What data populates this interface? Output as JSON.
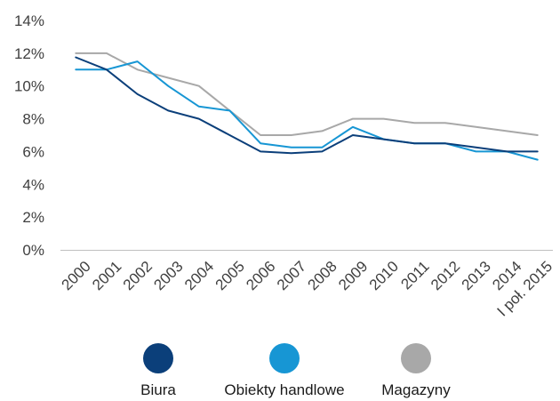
{
  "chart_data": {
    "type": "line",
    "title": "",
    "xlabel": "",
    "ylabel": "",
    "categories": [
      "2000",
      "2001",
      "2002",
      "2003",
      "2004",
      "2005",
      "2006",
      "2007",
      "2008",
      "2009",
      "2010",
      "2011",
      "2012",
      "2013",
      "2014",
      "I poł. 2015"
    ],
    "yticks": [
      "0%",
      "2%",
      "4%",
      "6%",
      "8%",
      "10%",
      "12%",
      "14%"
    ],
    "ylim": [
      0,
      14
    ],
    "grid": false,
    "legend_position": "bottom",
    "series": [
      {
        "name": "Biura",
        "color": "#0b3f7a",
        "values": [
          11.75,
          11.0,
          9.5,
          8.5,
          8.0,
          7.0,
          6.0,
          5.9,
          6.0,
          7.0,
          6.75,
          6.5,
          6.5,
          6.25,
          6.0,
          6.0
        ]
      },
      {
        "name": "Obiekty handlowe",
        "color": "#1796d4",
        "values": [
          11.0,
          11.0,
          11.5,
          10.0,
          8.75,
          8.5,
          6.5,
          6.25,
          6.25,
          7.5,
          6.75,
          6.5,
          6.5,
          6.0,
          6.0,
          5.5
        ]
      },
      {
        "name": "Magazyny",
        "color": "#a8a8a8",
        "values": [
          12.0,
          12.0,
          11.0,
          10.5,
          10.0,
          8.5,
          7.0,
          7.0,
          7.25,
          8.0,
          8.0,
          7.75,
          7.75,
          7.5,
          7.25,
          7.0
        ]
      }
    ]
  }
}
